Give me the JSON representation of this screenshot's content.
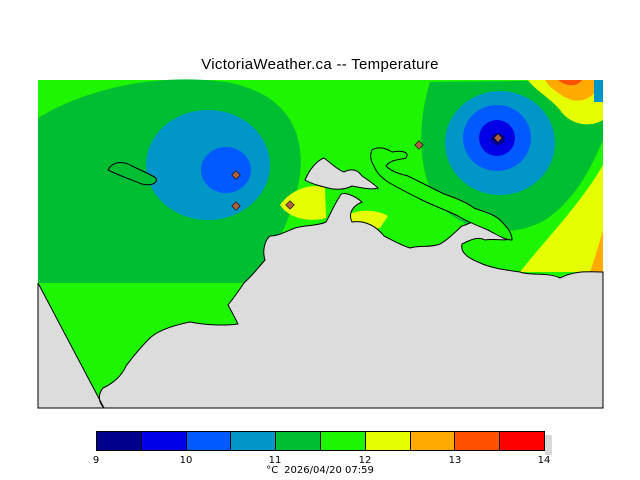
{
  "title": "VictoriaWeather.ca -- Temperature",
  "colors": {
    "background": "#ffffff",
    "land": "#dcdcdc",
    "coast": "#000000",
    "station": "#b06040"
  },
  "legend": {
    "ticks": [
      "9",
      "10",
      "11",
      "12",
      "13",
      "14"
    ],
    "bins": [
      {
        "color": "#00008c",
        "range": [
          9.0,
          9.5
        ]
      },
      {
        "color": "#0000e6",
        "range": [
          9.5,
          10.0
        ]
      },
      {
        "color": "#005aff",
        "range": [
          10.0,
          10.5
        ]
      },
      {
        "color": "#0096c8",
        "range": [
          10.5,
          11.0
        ]
      },
      {
        "color": "#00be32",
        "range": [
          11.0,
          11.5
        ]
      },
      {
        "color": "#1ef500",
        "range": [
          11.5,
          12.0
        ]
      },
      {
        "color": "#e6ff00",
        "range": [
          12.0,
          12.5
        ]
      },
      {
        "color": "#ffaa00",
        "range": [
          12.5,
          13.0
        ]
      },
      {
        "color": "#ff5000",
        "range": [
          13.0,
          13.5
        ]
      },
      {
        "color": "#ff0000",
        "range": [
          13.5,
          14.0
        ]
      }
    ],
    "units": "°C",
    "timestamp": "2026/04/20 07:59"
  },
  "stations_count": 5
}
